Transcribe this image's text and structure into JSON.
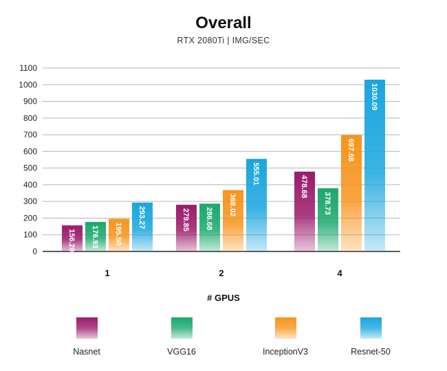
{
  "chart_data": {
    "type": "bar",
    "title": "Overall",
    "subtitle": "RTX 2080Ti | IMG/SEC",
    "xlabel": "# GPUS",
    "ylabel": "",
    "categories": [
      "1",
      "2",
      "4"
    ],
    "ylim": [
      0,
      1100
    ],
    "yticks": [
      0,
      100,
      200,
      300,
      400,
      500,
      600,
      700,
      800,
      900,
      1000,
      1100
    ],
    "grid": true,
    "legend_position": "bottom",
    "series": [
      {
        "name": "Nasnet",
        "color": "#9b1b6b",
        "values": [
          156.2,
          279.85,
          478.68
        ],
        "labels": [
          "156.20",
          "279.85",
          "478.68"
        ]
      },
      {
        "name": "VGG16",
        "color": "#1aa86c",
        "values": [
          176.93,
          286.68,
          378.73
        ],
        "labels": [
          "176.93",
          "286.68",
          "378.73"
        ]
      },
      {
        "name": "InceptionV3",
        "color": "#f7941d",
        "values": [
          195.5,
          368.02,
          697.68
        ],
        "labels": [
          "195.50",
          "368.02",
          "697.68"
        ]
      },
      {
        "name": "Resnet-50",
        "color": "#1aa6de",
        "values": [
          293.27,
          555.01,
          1030.09
        ],
        "labels": [
          "293.27",
          "555.01",
          "1030.09"
        ]
      }
    ]
  }
}
